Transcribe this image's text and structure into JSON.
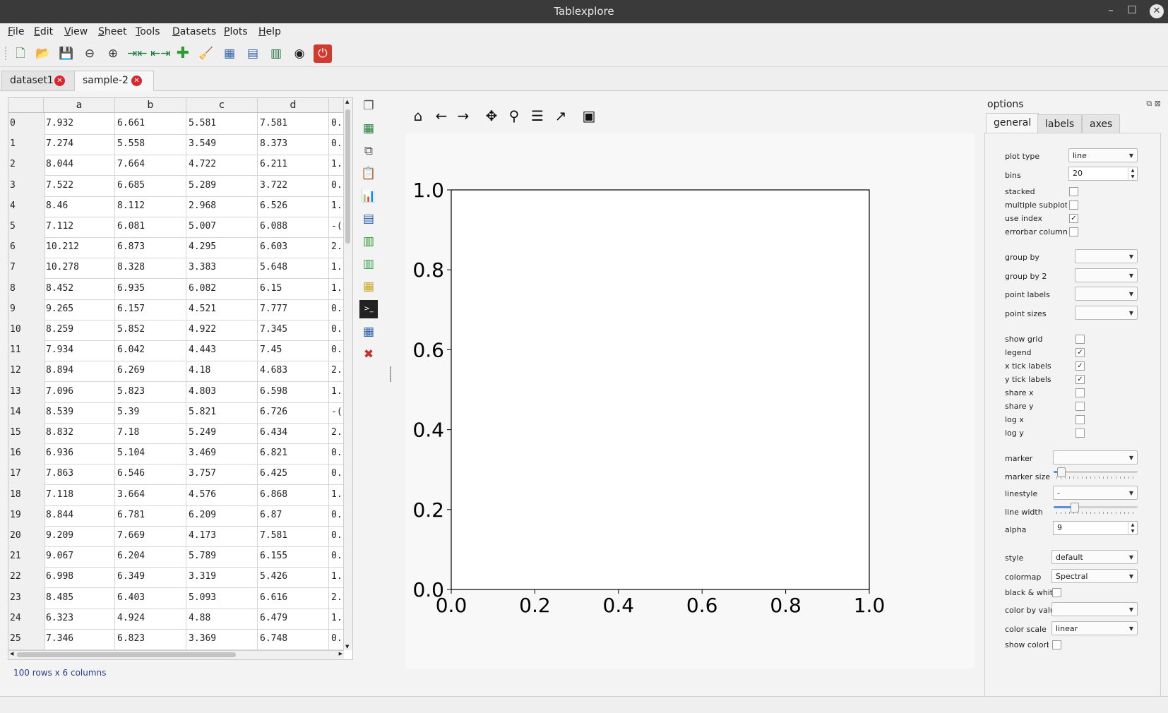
{
  "window": {
    "title": "Tablexplore"
  },
  "menu": [
    "File",
    "Edit",
    "View",
    "Sheet",
    "Tools",
    "Datasets",
    "Plots",
    "Help"
  ],
  "toolbar_icons": [
    "new-icon",
    "open-icon",
    "save-icon",
    "zoom-out-icon",
    "zoom-in-icon",
    "contract-columns-icon",
    "expand-columns-icon",
    "add-icon",
    "clean-icon",
    "table-info-icon",
    "table-help-icon",
    "chart-settings-icon",
    "preferences-icon",
    "quit-icon"
  ],
  "tabs": [
    {
      "label": "dataset1"
    },
    {
      "label": "sample-2"
    }
  ],
  "table": {
    "columns": [
      "a",
      "b",
      "c",
      "d",
      ""
    ],
    "rows": [
      {
        "index": "0",
        "a": "7.932",
        "b": "6.661",
        "c": "5.581",
        "d": "7.581",
        "e": "0."
      },
      {
        "index": "1",
        "a": "7.274",
        "b": "5.558",
        "c": "3.549",
        "d": "8.373",
        "e": "0."
      },
      {
        "index": "2",
        "a": "8.044",
        "b": "7.664",
        "c": "4.722",
        "d": "6.211",
        "e": "1."
      },
      {
        "index": "3",
        "a": "7.522",
        "b": "6.685",
        "c": "5.289",
        "d": "3.722",
        "e": "0."
      },
      {
        "index": "4",
        "a": "8.46",
        "b": "8.112",
        "c": "2.968",
        "d": "6.526",
        "e": "1."
      },
      {
        "index": "5",
        "a": "7.112",
        "b": "6.081",
        "c": "5.007",
        "d": "6.088",
        "e": "-("
      },
      {
        "index": "6",
        "a": "10.212",
        "b": "6.873",
        "c": "4.295",
        "d": "6.603",
        "e": "2."
      },
      {
        "index": "7",
        "a": "10.278",
        "b": "8.328",
        "c": "3.383",
        "d": "5.648",
        "e": "1."
      },
      {
        "index": "8",
        "a": "8.452",
        "b": "6.935",
        "c": "6.082",
        "d": "6.15",
        "e": "1."
      },
      {
        "index": "9",
        "a": "9.265",
        "b": "6.157",
        "c": "4.521",
        "d": "7.777",
        "e": "0."
      },
      {
        "index": "10",
        "a": "8.259",
        "b": "5.852",
        "c": "4.922",
        "d": "7.345",
        "e": "0."
      },
      {
        "index": "11",
        "a": "7.934",
        "b": "6.042",
        "c": "4.443",
        "d": "7.45",
        "e": "0."
      },
      {
        "index": "12",
        "a": "8.894",
        "b": "6.269",
        "c": "4.18",
        "d": "4.683",
        "e": "2."
      },
      {
        "index": "13",
        "a": "7.096",
        "b": "5.823",
        "c": "4.803",
        "d": "6.598",
        "e": "1."
      },
      {
        "index": "14",
        "a": "8.539",
        "b": "5.39",
        "c": "5.821",
        "d": "6.726",
        "e": "-("
      },
      {
        "index": "15",
        "a": "8.832",
        "b": "7.18",
        "c": "5.249",
        "d": "6.434",
        "e": "2."
      },
      {
        "index": "16",
        "a": "6.936",
        "b": "5.104",
        "c": "3.469",
        "d": "6.821",
        "e": "0."
      },
      {
        "index": "17",
        "a": "7.863",
        "b": "6.546",
        "c": "3.757",
        "d": "6.425",
        "e": "0."
      },
      {
        "index": "18",
        "a": "7.118",
        "b": "3.664",
        "c": "4.576",
        "d": "6.868",
        "e": "1."
      },
      {
        "index": "19",
        "a": "8.844",
        "b": "6.781",
        "c": "6.209",
        "d": "6.87",
        "e": "0."
      },
      {
        "index": "20",
        "a": "9.209",
        "b": "7.669",
        "c": "4.173",
        "d": "7.581",
        "e": "0."
      },
      {
        "index": "21",
        "a": "9.067",
        "b": "6.204",
        "c": "5.789",
        "d": "6.155",
        "e": "0."
      },
      {
        "index": "22",
        "a": "6.998",
        "b": "6.349",
        "c": "3.319",
        "d": "5.426",
        "e": "1."
      },
      {
        "index": "23",
        "a": "8.485",
        "b": "6.403",
        "c": "5.093",
        "d": "6.616",
        "e": "2."
      },
      {
        "index": "24",
        "a": "6.323",
        "b": "4.924",
        "c": "4.88",
        "d": "6.479",
        "e": "1."
      },
      {
        "index": "25",
        "a": "7.346",
        "b": "6.823",
        "c": "3.369",
        "d": "6.748",
        "e": "0."
      }
    ],
    "status": "100 rows x 6 columns"
  },
  "side_tools": [
    "copy-table-icon",
    "export-excel-icon",
    "copy-icon",
    "paste-icon",
    "plot-icon",
    "transpose-icon",
    "merge-icon",
    "pivot-icon",
    "aggregate-icon",
    "python-console-icon",
    "table-view-icon",
    "delete-table-icon"
  ],
  "plot_toolbar": [
    "home-icon",
    "back-icon",
    "forward-icon",
    "pan-icon",
    "zoom-icon",
    "configure-icon",
    "edit-axes-icon",
    "save-figure-icon"
  ],
  "chart_data": {
    "type": "line",
    "series": [],
    "xlim": [
      0.0,
      1.0
    ],
    "ylim": [
      0.0,
      1.0
    ],
    "xticks": [
      "0.0",
      "0.2",
      "0.4",
      "0.6",
      "0.8",
      "1.0"
    ],
    "yticks": [
      "0.0",
      "0.2",
      "0.4",
      "0.6",
      "0.8",
      "1.0"
    ],
    "title": "",
    "xlabel": "",
    "ylabel": "",
    "grid": false
  },
  "options": {
    "title": "options",
    "tabs": [
      "general",
      "labels",
      "axes"
    ],
    "plot_type": {
      "label": "plot type",
      "value": "line"
    },
    "bins": {
      "label": "bins",
      "value": "20"
    },
    "checks1": [
      {
        "label": "stacked",
        "checked": false
      },
      {
        "label": "multiple subplots",
        "checked": false
      },
      {
        "label": "use index",
        "checked": true
      },
      {
        "label": "errorbar column",
        "checked": false
      }
    ],
    "combos1": [
      {
        "label": "group by",
        "value": ""
      },
      {
        "label": "group by 2",
        "value": ""
      },
      {
        "label": "point labels",
        "value": ""
      },
      {
        "label": "point sizes",
        "value": ""
      }
    ],
    "checks2": [
      {
        "label": "show grid",
        "checked": false
      },
      {
        "label": "legend",
        "checked": true
      },
      {
        "label": "x tick labels",
        "checked": true
      },
      {
        "label": "y tick labels",
        "checked": true
      },
      {
        "label": "share x",
        "checked": false
      },
      {
        "label": "share y",
        "checked": false
      },
      {
        "label": "log x",
        "checked": false
      },
      {
        "label": "log y",
        "checked": false
      }
    ],
    "marker": {
      "label": "marker",
      "value": ""
    },
    "marker_size": {
      "label": "marker size",
      "level": 0.05
    },
    "linestyle": {
      "label": "linestyle",
      "value": "-"
    },
    "line_width": {
      "label": "line width",
      "level": 0.22
    },
    "alpha": {
      "label": "alpha",
      "value": "9"
    },
    "style": {
      "label": "style",
      "value": "default"
    },
    "colormap": {
      "label": "colormap",
      "value": "Spectral"
    },
    "black_white": {
      "label": "black & white",
      "checked": false
    },
    "color_by_value": {
      "label": "color by value",
      "value": ""
    },
    "color_scale": {
      "label": "color scale",
      "value": "linear"
    },
    "show_colorbar": {
      "label": "show colorbar",
      "checked": false
    }
  }
}
